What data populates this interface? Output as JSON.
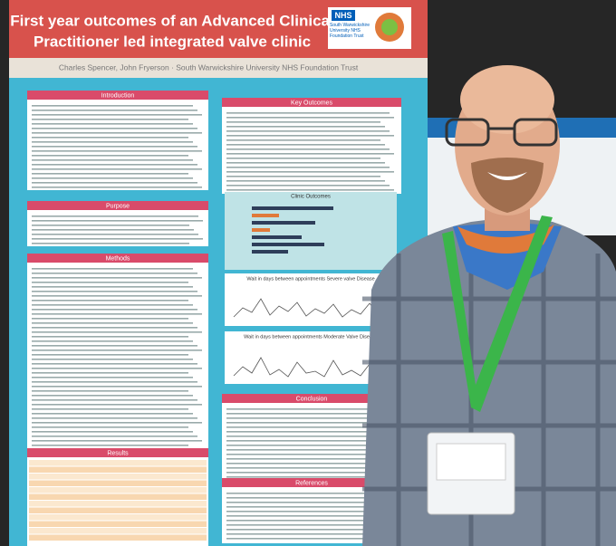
{
  "poster": {
    "title": [
      "First year outcomes of an Advanced Clinical",
      "Practitioner led integrated valve clinic"
    ],
    "authors": "Charles Spencer, John Fryerson · South Warwickshire University NHS Foundation Trust",
    "logo": {
      "mark": "NHS",
      "org": "South Warwickshire University NHS Foundation Trust"
    },
    "left_sections": [
      "Introduction",
      "Purpose",
      "Methods",
      "Results"
    ],
    "right_sections": [
      "Key Outcomes",
      "Conclusion",
      "References"
    ],
    "charts": [
      "Clinic Outcomes",
      "Wait in days between appointments Severe valve Disease",
      "Wait in days between appointments Moderate Valve Disease"
    ]
  }
}
